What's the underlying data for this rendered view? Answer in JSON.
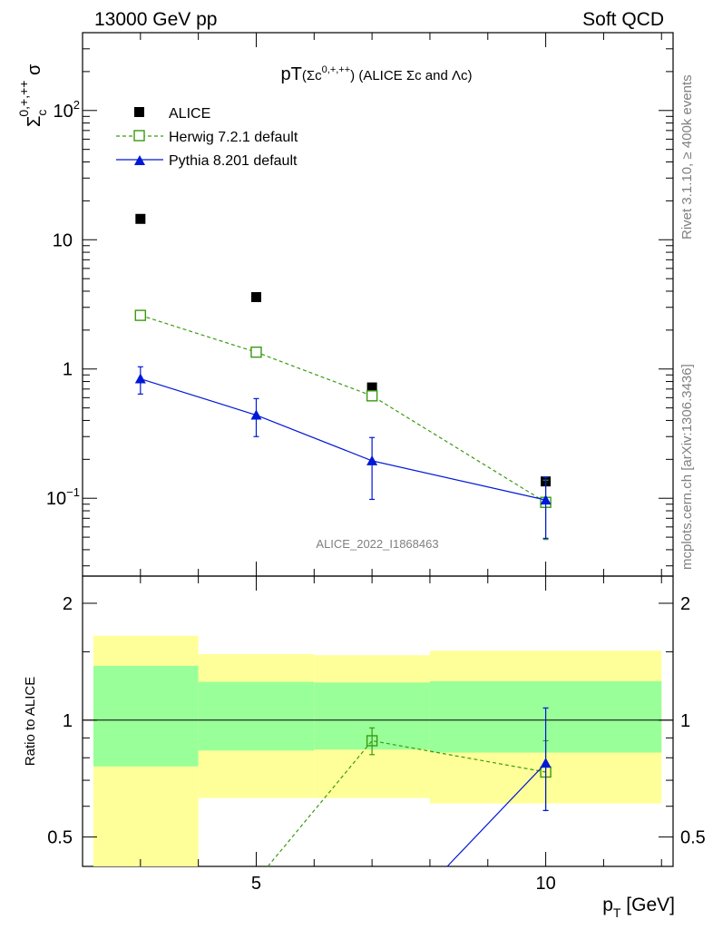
{
  "header": {
    "left": "13000 GeV pp",
    "right": "Soft QCD"
  },
  "title": {
    "main": "pT",
    "detail_prefix": "(Σc",
    "detail_sup": "0,+,++",
    "detail_suffix": ") (ALICE Σc and Λc)"
  },
  "ylabel": {
    "base": "Σ",
    "sub": "c",
    "sup": "0,+,++",
    "tail": " σ"
  },
  "xlabel": {
    "base": "p",
    "sub": "T",
    "tail": " [GeV]"
  },
  "ratio_ylabel": "Ratio to ALICE",
  "side_text": {
    "rivet": "Rivet 3.1.10, ≥ 400k events",
    "mcplots": "mcplots.cern.ch [arXiv:1306.3436]"
  },
  "watermark": "ALICE_2022_I1868463",
  "legend": {
    "data": "ALICE",
    "herwig": "Herwig 7.2.1 default",
    "pythia": "Pythia 8.201 default"
  },
  "colors": {
    "data": "#000000",
    "herwig": "#3a9a10",
    "pythia": "#0018d8",
    "band_inner": "#99ff99",
    "band_outer": "#ffff99"
  },
  "chart_data": {
    "type": "scatter",
    "x_scale": "linear",
    "y_scale": "log",
    "xlim": [
      2,
      12.2
    ],
    "ylim": [
      0.025,
      400
    ],
    "x_ticks": [
      5,
      10
    ],
    "y_ticks": [
      {
        "value": 0.1,
        "label": "10",
        "sup": "−1"
      },
      {
        "value": 1,
        "label": "1",
        "sup": ""
      },
      {
        "value": 10,
        "label": "10",
        "sup": ""
      },
      {
        "value": 100,
        "label": "10",
        "sup": "2"
      }
    ],
    "series": [
      {
        "name": "ALICE",
        "key": "data",
        "x": [
          3,
          5,
          7,
          10
        ],
        "y": [
          14.5,
          3.6,
          0.72,
          0.135
        ]
      },
      {
        "name": "Herwig 7.2.1 default",
        "key": "herwig",
        "x": [
          3,
          5,
          7,
          10
        ],
        "y": [
          2.6,
          1.35,
          0.62,
          0.093
        ],
        "err_low": [
          0.05,
          0.03,
          0.03,
          0.045
        ],
        "err_high": [
          0.05,
          0.03,
          0.03,
          0.045
        ]
      },
      {
        "name": "Pythia 8.201 default",
        "key": "pythia",
        "x": [
          3,
          5,
          7,
          10
        ],
        "y": [
          0.84,
          0.44,
          0.195,
          0.097
        ],
        "err_low": [
          0.2,
          0.14,
          0.097,
          0.048
        ],
        "err_high": [
          0.2,
          0.15,
          0.1,
          0.048
        ]
      }
    ],
    "ratio": {
      "ylim": [
        0.42,
        2.35
      ],
      "y_ticks": [
        0.5,
        1,
        2
      ],
      "bins": [
        {
          "x0": 2,
          "x1": 4,
          "inner": [
            0.76,
            1.38
          ],
          "outer": [
            0.37,
            1.65
          ]
        },
        {
          "x0": 4,
          "x1": 6,
          "inner": [
            0.835,
            1.255
          ],
          "outer": [
            0.63,
            1.48
          ]
        },
        {
          "x0": 6,
          "x1": 8,
          "inner": [
            0.84,
            1.25
          ],
          "outer": [
            0.63,
            1.47
          ]
        },
        {
          "x0": 8,
          "x1": 12,
          "inner": [
            0.825,
            1.26
          ],
          "outer": [
            0.61,
            1.51
          ]
        }
      ],
      "series": [
        {
          "key": "herwig",
          "x": [
            5.2,
            7,
            10
          ],
          "y": [
            0.42,
            0.885,
            0.735
          ],
          "err_low": [
            0,
            0.07,
            0.15
          ],
          "err_high": [
            0,
            0.07,
            0.15
          ],
          "marker": [
            false,
            true,
            true
          ]
        },
        {
          "key": "pythia",
          "x": [
            8.3,
            10
          ],
          "y": [
            0.42,
            0.775
          ],
          "err_low": [
            0,
            0.19
          ],
          "err_high": [
            0,
            0.3
          ],
          "marker": [
            false,
            true
          ]
        }
      ]
    }
  }
}
